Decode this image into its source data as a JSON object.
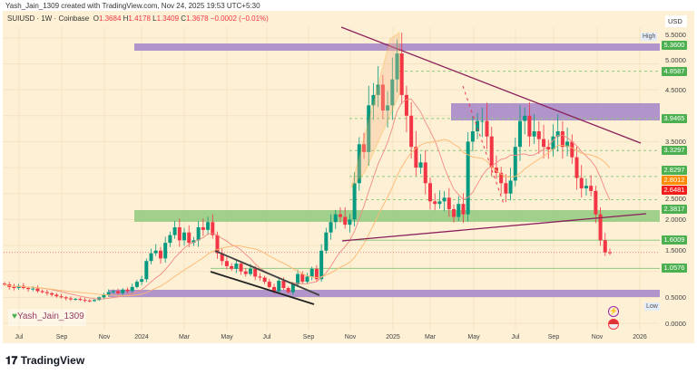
{
  "credit": "Yash_Jain_1309 created with TradingView.com, Nov 24, 2025 19:53 UTC+5:30",
  "symbol": {
    "name": "SUIUSD · 1W · Coinbase",
    "o_label": "O",
    "o": "1.3684",
    "h_label": "H",
    "h": "1.4178",
    "l_label": "L",
    "l": "1.3409",
    "c_label": "C",
    "c": "1.3678",
    "change": "−0.0002 (−0.01%)"
  },
  "currency": "USD",
  "high_tag": "High",
  "low_tag": "Low",
  "price_ticks": [
    "5.5000",
    "5.0000",
    "4.5000",
    "3.5000",
    "2.5000",
    "2.0000",
    "1.5000",
    "0.5000",
    "0.0000"
  ],
  "price_labels": [
    {
      "text": "5.3600",
      "color": "#4caf50",
      "value": 5.36
    },
    {
      "text": "4.8587",
      "color": "#4caf50",
      "value": 4.8587
    },
    {
      "text": "3.9465",
      "color": "#4caf50",
      "value": 3.9465
    },
    {
      "text": "3.3297",
      "color": "#4caf50",
      "value": 3.3297
    },
    {
      "text": "2.8297",
      "color": "#4caf50",
      "value": 2.8297
    },
    {
      "text": "2.8012",
      "color": "#ff8c00",
      "value": 2.8012
    },
    {
      "text": "2.6481",
      "color": "#f21d1d",
      "value": 2.6481
    },
    {
      "text": "2.3817",
      "color": "#4caf50",
      "value": 2.3817
    },
    {
      "text": "1.6009",
      "color": "#4caf50",
      "value": 1.6009
    },
    {
      "text": "1.0576",
      "color": "#4caf50",
      "value": 1.0576
    }
  ],
  "x_ticks": [
    "Jul",
    "Sep",
    "Nov",
    "2024",
    "Mar",
    "May",
    "Jul",
    "Sep",
    "Nov",
    "2025",
    "Mar",
    "May",
    "Jul",
    "Sep",
    "Nov",
    "2026"
  ],
  "watermark": "Yash_Jain_1309",
  "logo": "TradingView",
  "colors": {
    "up": "#089981",
    "down": "#f23645",
    "bg": "#fdf0d5",
    "zone_purple": "#9c6fc2",
    "zone_green": "#8fca7e"
  },
  "chart_data": {
    "type": "candlestick",
    "timeframe": "1W",
    "ylim": [
      0,
      5.5
    ],
    "closes": [
      0.75,
      0.7,
      0.68,
      0.72,
      0.68,
      0.66,
      0.67,
      0.62,
      0.6,
      0.58,
      0.55,
      0.52,
      0.5,
      0.48,
      0.46,
      0.47,
      0.45,
      0.44,
      0.43,
      0.45,
      0.5,
      0.55,
      0.6,
      0.62,
      0.58,
      0.65,
      0.62,
      0.7,
      0.8,
      0.85,
      1.2,
      1.35,
      1.4,
      1.25,
      1.55,
      1.7,
      1.85,
      1.6,
      1.75,
      1.55,
      1.6,
      1.85,
      1.8,
      1.95,
      1.7,
      1.35,
      1.2,
      1.1,
      1.05,
      1.15,
      1.0,
      0.95,
      1.05,
      0.9,
      0.88,
      0.8,
      0.7,
      0.62,
      0.82,
      0.68,
      0.6,
      0.75,
      0.95,
      0.8,
      0.9,
      1.05,
      0.85,
      1.4,
      1.75,
      1.95,
      2.1,
      2.05,
      1.9,
      2.0,
      2.7,
      3.45,
      3.3,
      4.2,
      4.4,
      4.6,
      4.1,
      4.2,
      4.7,
      5.2,
      4.4,
      4.0,
      3.4,
      3.0,
      3.1,
      2.7,
      2.35,
      2.3,
      2.35,
      2.42,
      2.2,
      2.05,
      2.3,
      2.1,
      3.5,
      3.7,
      3.9,
      3.9,
      3.6,
      3.0,
      2.9,
      2.7,
      2.5,
      2.75,
      3.4,
      3.9,
      4.0,
      3.6,
      3.7,
      3.55,
      3.4,
      3.35,
      3.6,
      3.7,
      3.4,
      3.5,
      3.2,
      2.8,
      2.6,
      2.65,
      2.55,
      2.1,
      1.6,
      1.3684,
      1.3678
    ]
  }
}
